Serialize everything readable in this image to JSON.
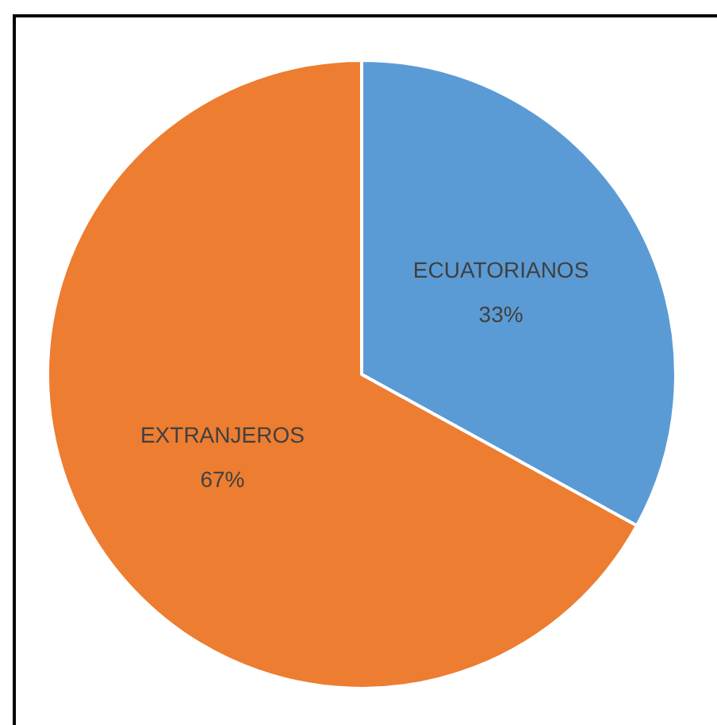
{
  "chart_data": {
    "type": "pie",
    "categories": [
      "ECUATORIANOS",
      "EXTRANJEROS"
    ],
    "values": [
      33,
      67
    ],
    "colors": [
      "#5b9bd5",
      "#ed7d31"
    ],
    "value_labels": [
      "33%",
      "67%"
    ],
    "legend": false
  }
}
